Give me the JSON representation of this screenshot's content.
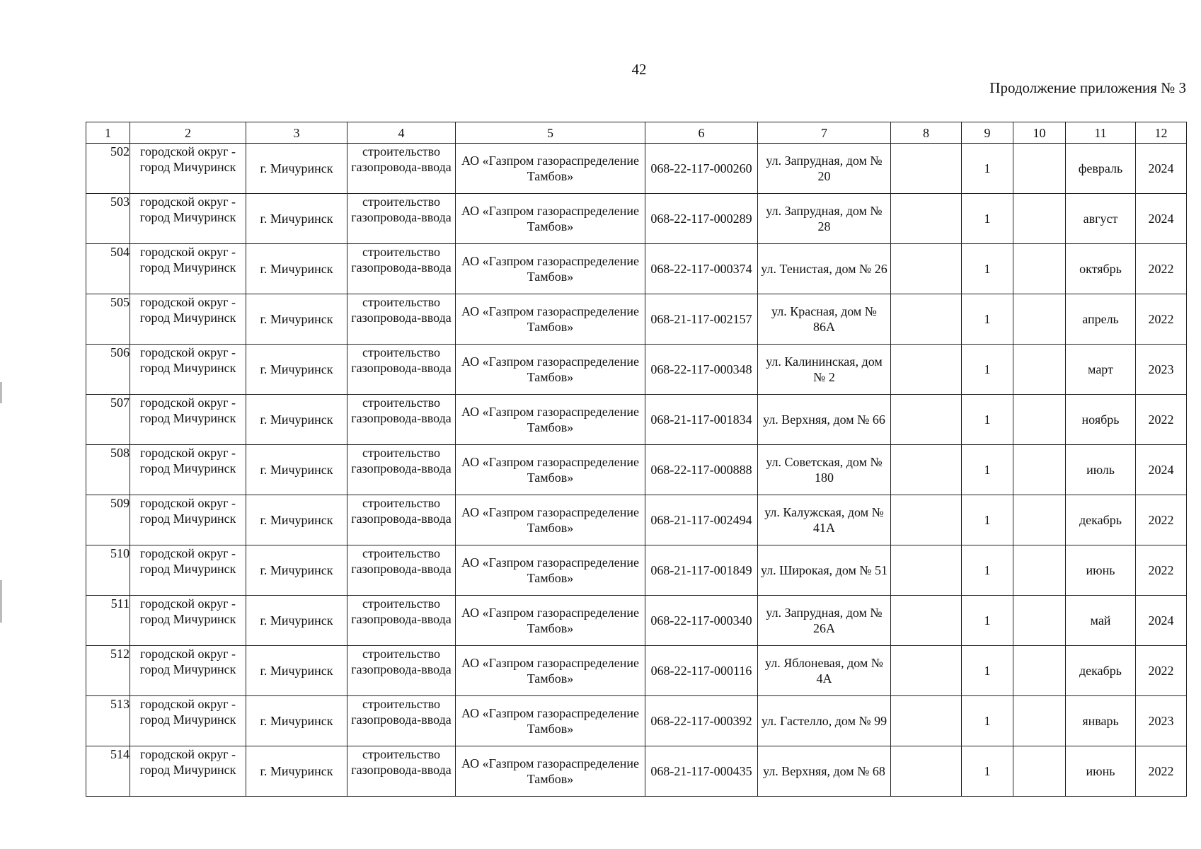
{
  "page_number": "42",
  "continuation": "Продолжение приложения № 3",
  "table": {
    "headers": [
      "1",
      "2",
      "3",
      "4",
      "5",
      "6",
      "7",
      "8",
      "9",
      "10",
      "11",
      "12"
    ],
    "rows": [
      [
        "502",
        "городской округ - город Мичуринск",
        "г. Мичуринск",
        "строительство газопровода-ввода",
        "АО «Газпром газораспределение Тамбов»",
        "068-22-117-000260",
        "ул. Запрудная, дом № 20",
        "",
        "1",
        "",
        "февраль",
        "2024"
      ],
      [
        "503",
        "городской округ - город Мичуринск",
        "г. Мичуринск",
        "строительство газопровода-ввода",
        "АО «Газпром газораспределение Тамбов»",
        "068-22-117-000289",
        "ул. Запрудная, дом № 28",
        "",
        "1",
        "",
        "август",
        "2024"
      ],
      [
        "504",
        "городской округ - город Мичуринск",
        "г. Мичуринск",
        "строительство газопровода-ввода",
        "АО «Газпром газораспределение Тамбов»",
        "068-22-117-000374",
        "ул. Тенистая, дом № 26",
        "",
        "1",
        "",
        "октябрь",
        "2022"
      ],
      [
        "505",
        "городской округ - город Мичуринск",
        "г. Мичуринск",
        "строительство газопровода-ввода",
        "АО «Газпром газораспределение Тамбов»",
        "068-21-117-002157",
        "ул. Красная, дом № 86А",
        "",
        "1",
        "",
        "апрель",
        "2022"
      ],
      [
        "506",
        "городской округ - город Мичуринск",
        "г. Мичуринск",
        "строительство газопровода-ввода",
        "АО «Газпром газораспределение Тамбов»",
        "068-22-117-000348",
        "ул. Калининская, дом № 2",
        "",
        "1",
        "",
        "март",
        "2023"
      ],
      [
        "507",
        "городской округ - город Мичуринск",
        "г. Мичуринск",
        "строительство газопровода-ввода",
        "АО «Газпром газораспределение Тамбов»",
        "068-21-117-001834",
        "ул. Верхняя, дом № 66",
        "",
        "1",
        "",
        "ноябрь",
        "2022"
      ],
      [
        "508",
        "городской округ - город Мичуринск",
        "г. Мичуринск",
        "строительство газопровода-ввода",
        "АО «Газпром газораспределение Тамбов»",
        "068-22-117-000888",
        "ул. Советская, дом № 180",
        "",
        "1",
        "",
        "июль",
        "2024"
      ],
      [
        "509",
        "городской округ - город Мичуринск",
        "г. Мичуринск",
        "строительство газопровода-ввода",
        "АО «Газпром газораспределение Тамбов»",
        "068-21-117-002494",
        "ул. Калужская, дом № 41А",
        "",
        "1",
        "",
        "декабрь",
        "2022"
      ],
      [
        "510",
        "городской округ - город Мичуринск",
        "г. Мичуринск",
        "строительство газопровода-ввода",
        "АО «Газпром газораспределение Тамбов»",
        "068-21-117-001849",
        "ул. Широкая, дом № 51",
        "",
        "1",
        "",
        "июнь",
        "2022"
      ],
      [
        "511",
        "городской округ - город Мичуринск",
        "г. Мичуринск",
        "строительство газопровода-ввода",
        "АО «Газпром газораспределение Тамбов»",
        "068-22-117-000340",
        "ул. Запрудная, дом № 26А",
        "",
        "1",
        "",
        "май",
        "2024"
      ],
      [
        "512",
        "городской округ - город Мичуринск",
        "г. Мичуринск",
        "строительство газопровода-ввода",
        "АО «Газпром газораспределение Тамбов»",
        "068-22-117-000116",
        "ул. Яблоневая, дом № 4А",
        "",
        "1",
        "",
        "декабрь",
        "2022"
      ],
      [
        "513",
        "городской округ - город Мичуринск",
        "г. Мичуринск",
        "строительство газопровода-ввода",
        "АО «Газпром газораспределение Тамбов»",
        "068-22-117-000392",
        "ул. Гастелло, дом № 99",
        "",
        "1",
        "",
        "январь",
        "2023"
      ],
      [
        "514",
        "городской округ - город Мичуринск",
        "г. Мичуринск",
        "строительство газопровода-ввода",
        "АО «Газпром газораспределение Тамбов»",
        "068-21-117-000435",
        "ул. Верхняя, дом № 68",
        "",
        "1",
        "",
        "июнь",
        "2022"
      ]
    ]
  }
}
